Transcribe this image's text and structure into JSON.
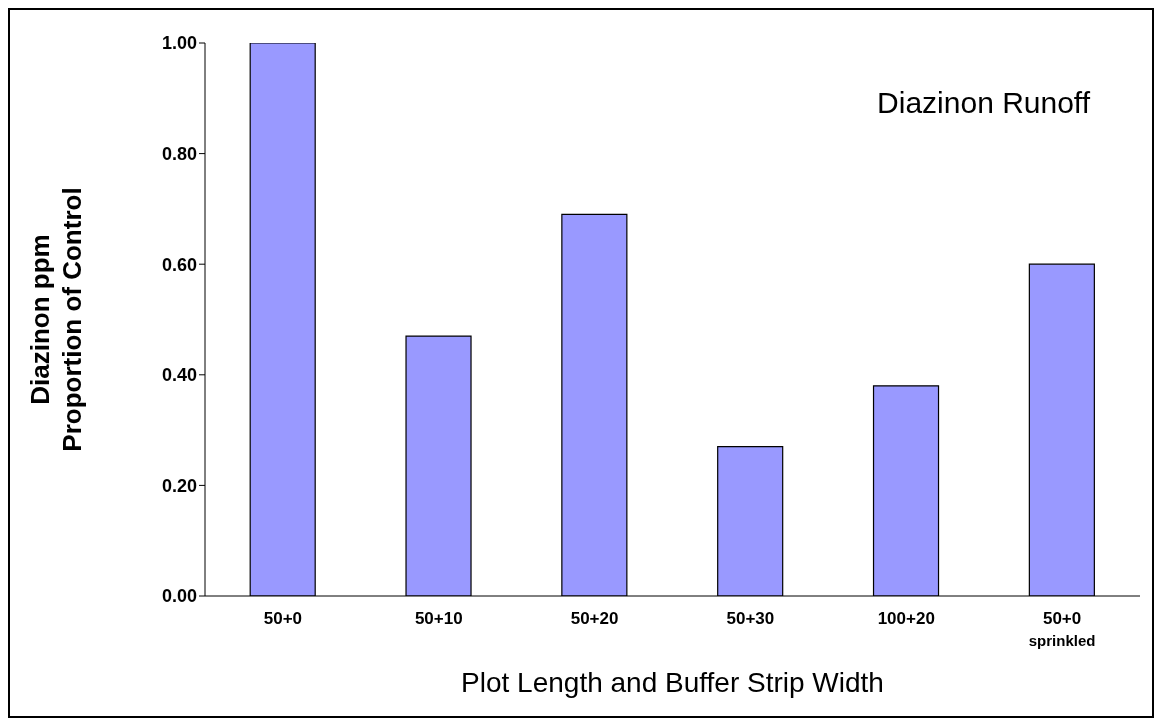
{
  "chart_data": {
    "type": "bar",
    "title": "Diazinon Runoff",
    "xlabel": "Plot Length and Buffer Strip Width",
    "ylabel": "Diazinon ppm\nProportion of Control",
    "categories": [
      "50+0",
      "50+10",
      "50+20",
      "50+30",
      "100+20",
      "50+0\nsprinkled"
    ],
    "values": [
      1.0,
      0.47,
      0.69,
      0.27,
      0.38,
      0.6
    ],
    "color": "#9999ff",
    "ylim": [
      0,
      1
    ],
    "yticks": [
      {
        "value": 0,
        "label": "0.00"
      },
      {
        "value": 0.2,
        "label": "0.20"
      },
      {
        "value": 0.4,
        "label": "0.40"
      },
      {
        "value": 0.6,
        "label": "0.60"
      },
      {
        "value": 0.8,
        "label": "0.80"
      },
      {
        "value": 1,
        "label": "1.00"
      }
    ]
  }
}
